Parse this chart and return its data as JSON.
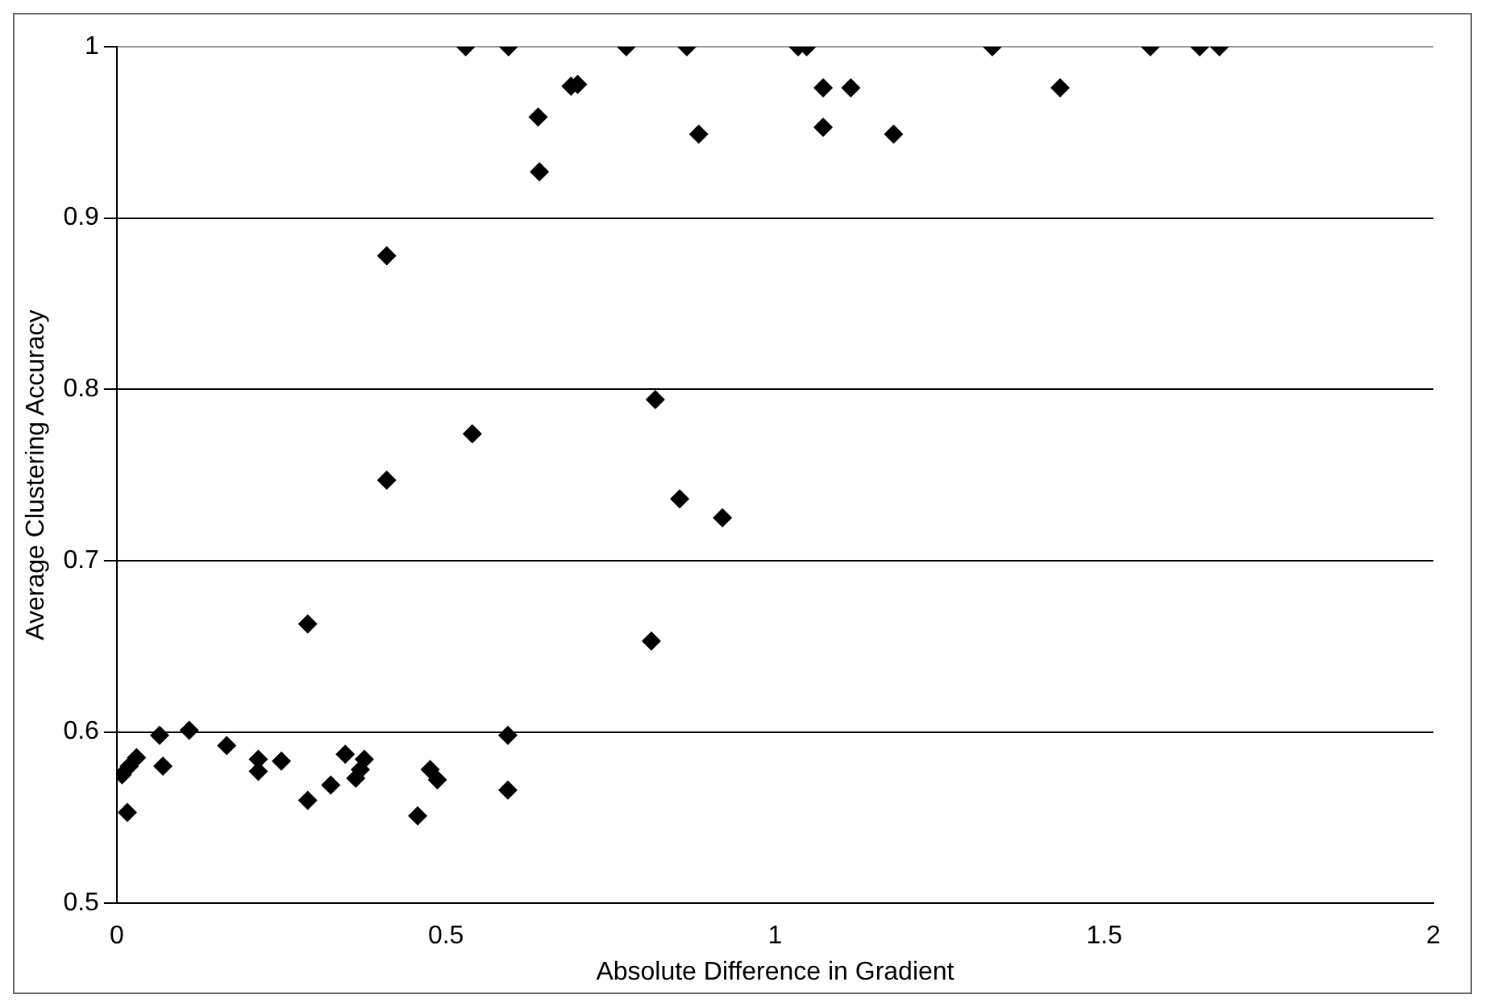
{
  "chart_data": {
    "type": "scatter",
    "xlabel": "Absolute Difference in Gradient",
    "ylabel": "Average Clustering Accuracy",
    "xlim": [
      0,
      2
    ],
    "xticks": [
      0,
      0.5,
      1,
      1.5,
      2
    ],
    "ylim": [
      0.5,
      1
    ],
    "yticks": [
      0.5,
      0.6,
      0.7,
      0.8,
      0.9,
      1
    ],
    "grid": "y",
    "marker": "diamond",
    "legend": false,
    "series": [
      {
        "color": "#000000",
        "x": [
          0.008,
          0.019,
          0.03,
          0.016,
          0.065,
          0.07,
          0.11,
          0.167,
          0.215,
          0.215,
          0.25,
          0.29,
          0.29,
          0.325,
          0.347,
          0.363,
          0.37,
          0.376,
          0.457,
          0.476,
          0.487,
          0.594,
          0.594,
          0.812,
          0.41,
          0.41,
          0.54,
          0.53,
          0.595,
          0.64,
          0.642,
          0.69,
          0.7,
          0.774,
          0.866,
          0.884,
          1.035,
          1.048,
          1.073,
          1.115,
          1.073,
          1.18,
          1.33,
          1.433,
          0.818,
          0.855,
          0.92,
          1.57,
          1.645,
          1.675
        ],
        "values": [
          0.575,
          0.58,
          0.585,
          0.553,
          0.598,
          0.58,
          0.601,
          0.592,
          0.584,
          0.577,
          0.583,
          0.663,
          0.56,
          0.569,
          0.587,
          0.573,
          0.578,
          0.584,
          0.551,
          0.578,
          0.572,
          0.598,
          0.566,
          0.653,
          0.878,
          0.747,
          0.774,
          1,
          1,
          0.959,
          0.927,
          0.977,
          0.978,
          1,
          1,
          0.949,
          1,
          1,
          0.976,
          0.976,
          0.953,
          0.949,
          1,
          0.976,
          0.794,
          0.736,
          0.725,
          1,
          1,
          1
        ]
      }
    ]
  }
}
